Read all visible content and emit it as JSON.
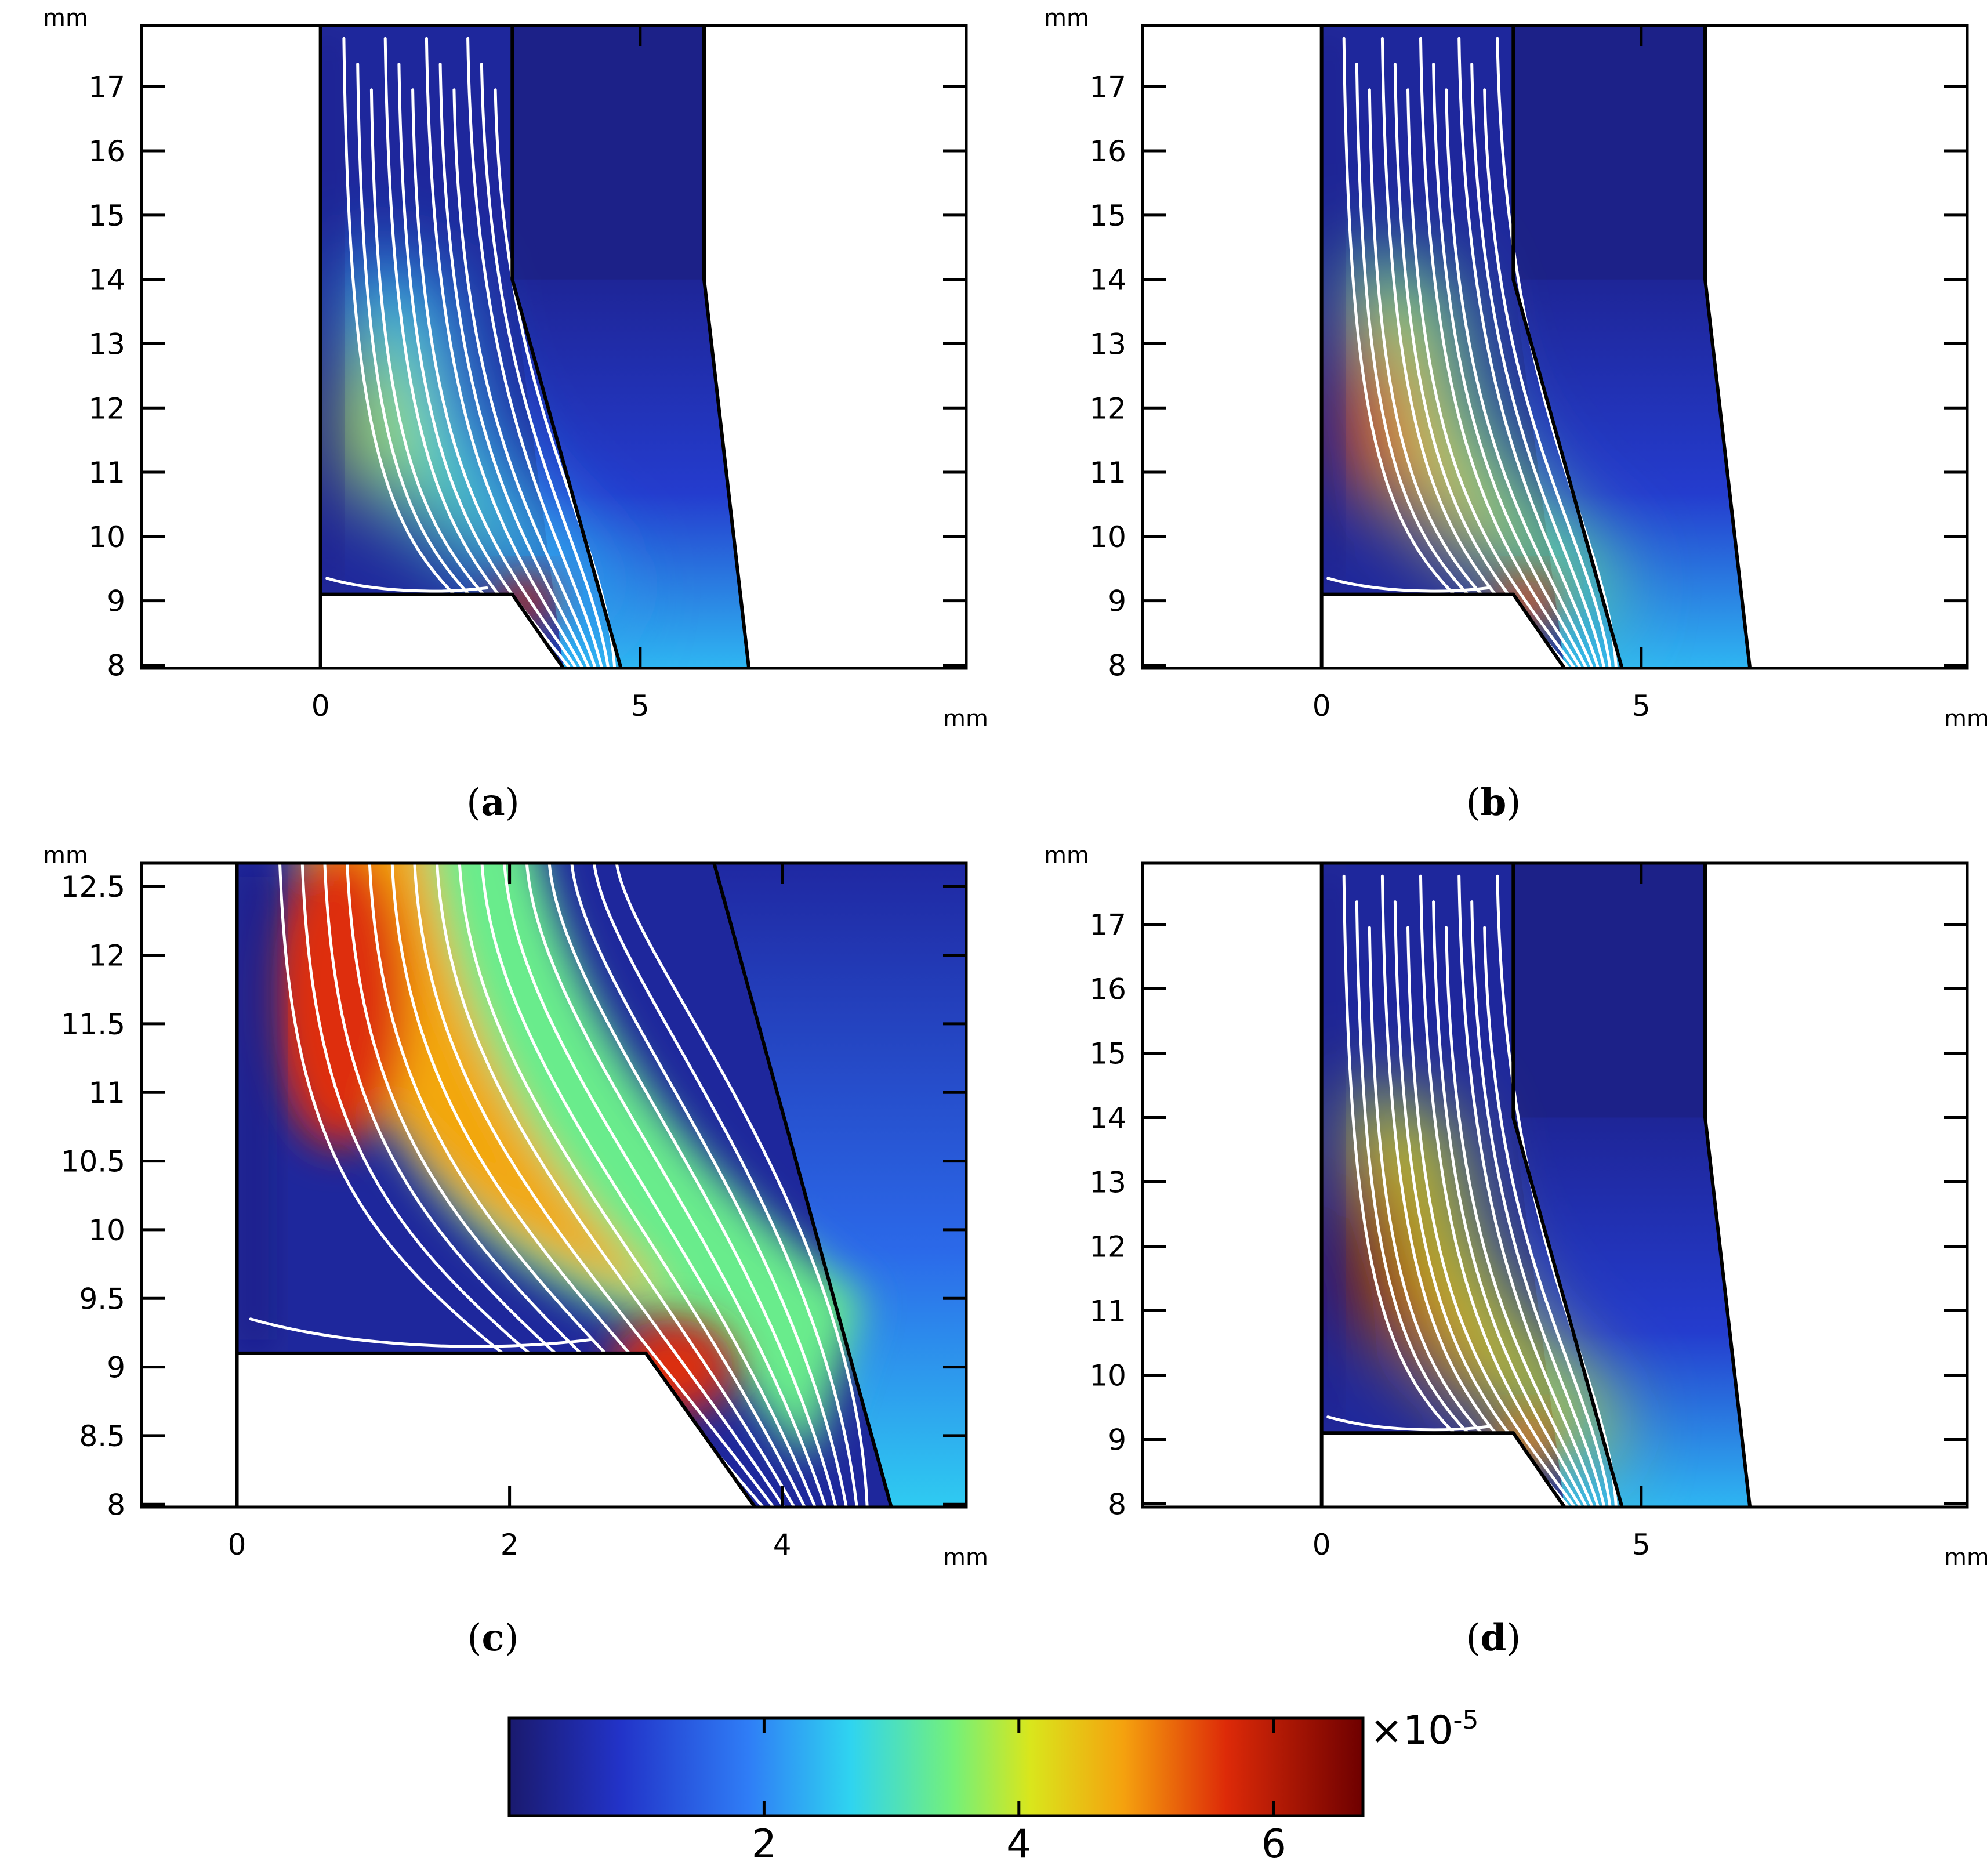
{
  "figure": {
    "unit": "mm",
    "colorbar": {
      "ticks": [
        "2",
        "4",
        "6"
      ],
      "tick_values": [
        2,
        4,
        6
      ],
      "multiplier": "×10",
      "exponent": "-5",
      "range": [
        0,
        6.7
      ]
    }
  },
  "chart_data": [
    {
      "panel": "a",
      "caption_letter": "a",
      "type": "heatmap",
      "xlabel": "mm",
      "ylabel": "mm",
      "xlim": [
        -2.8,
        10.1
      ],
      "ylim": [
        7.95,
        17.95
      ],
      "x_ticks": [
        "0",
        "5"
      ],
      "x_tick_values": [
        0,
        5
      ],
      "y_ticks": [
        "8",
        "9",
        "10",
        "11",
        "12",
        "13",
        "14",
        "15",
        "16",
        "17"
      ],
      "y_tick_values": [
        8,
        9,
        10,
        11,
        12,
        13,
        14,
        15,
        16,
        17
      ],
      "hotspot": {
        "x": 3.1,
        "y": 9.1,
        "peak_1e-5": 5.9
      },
      "plume_peak_1e-5": 3.9,
      "streamlines": 12
    },
    {
      "panel": "b",
      "caption_letter": "b",
      "type": "heatmap",
      "xlabel": "mm",
      "ylabel": "mm",
      "xlim": [
        -2.8,
        10.1
      ],
      "ylim": [
        7.95,
        17.95
      ],
      "x_ticks": [
        "0",
        "5"
      ],
      "x_tick_values": [
        0,
        5
      ],
      "y_ticks": [
        "8",
        "9",
        "10",
        "11",
        "12",
        "13",
        "14",
        "15",
        "16",
        "17"
      ],
      "y_tick_values": [
        8,
        9,
        10,
        11,
        12,
        13,
        14,
        15,
        16,
        17
      ],
      "hotspot": {
        "x": 3.1,
        "y": 9.1,
        "peak_1e-5": 5.4
      },
      "plume_peak_1e-5": 5.6,
      "streamlines": 13
    },
    {
      "panel": "c",
      "caption_letter": "c",
      "type": "heatmap",
      "xlabel": "mm",
      "ylabel": "mm",
      "xlim": [
        -0.7,
        5.35
      ],
      "ylim": [
        7.98,
        12.67
      ],
      "x_ticks": [
        "0",
        "2",
        "4"
      ],
      "x_tick_values": [
        0,
        2,
        4
      ],
      "y_ticks": [
        "8",
        "8.5",
        "9",
        "9.5",
        "10",
        "10.5",
        "11",
        "11.5",
        "12",
        "12.5"
      ],
      "y_tick_values": [
        8,
        8.5,
        9,
        9.5,
        10,
        10.5,
        11,
        11.5,
        12,
        12.5
      ],
      "hotspot": {
        "x": 3.1,
        "y": 9.1,
        "peak_1e-5": 5.6
      },
      "plume_peak_1e-5": 5.6,
      "streamlines": 16
    },
    {
      "panel": "d",
      "caption_letter": "d",
      "type": "heatmap",
      "xlabel": "mm",
      "ylabel": "mm",
      "xlim": [
        -2.8,
        10.1
      ],
      "ylim": [
        7.95,
        17.95
      ],
      "x_ticks": [
        "0",
        "5"
      ],
      "x_tick_values": [
        0,
        5
      ],
      "y_ticks": [
        "8",
        "9",
        "10",
        "11",
        "12",
        "13",
        "14",
        "15",
        "16",
        "17"
      ],
      "y_tick_values": [
        8,
        9,
        10,
        11,
        12,
        13,
        14,
        15,
        16,
        17
      ],
      "hotspot": {
        "x": 3.1,
        "y": 9.1,
        "peak_1e-5": 5.0
      },
      "plume_peak_1e-5": 6.6,
      "streamlines": 13
    }
  ]
}
